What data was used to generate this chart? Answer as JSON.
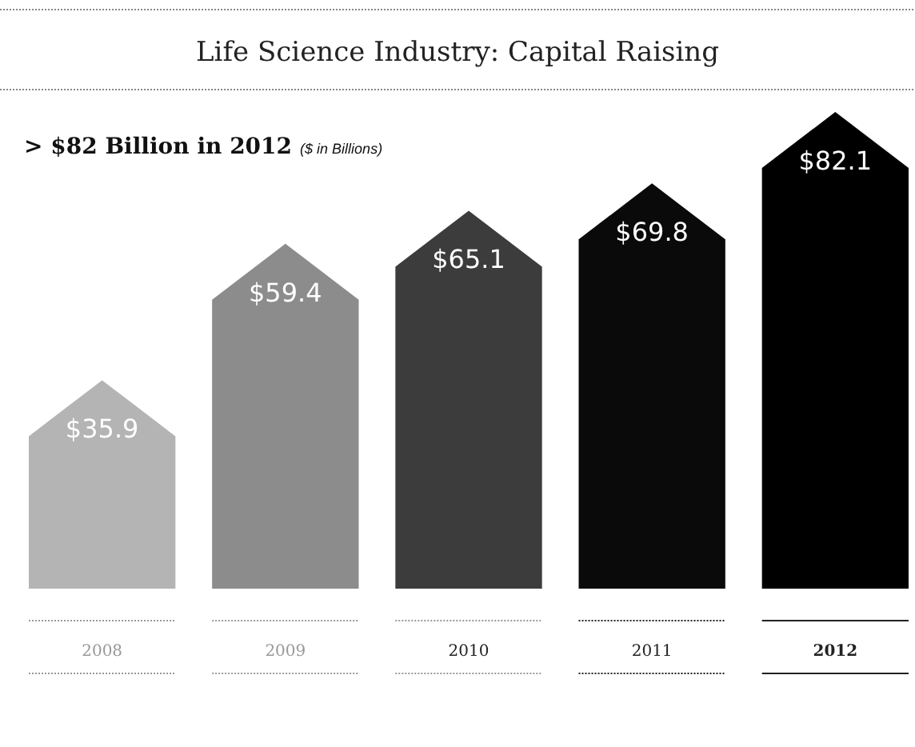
{
  "chart_data": {
    "type": "bar",
    "title": "Life Science Industry: Capital Raising",
    "subtitle": "> $82 Billion in 2012",
    "ylabel": "($ in Billions)",
    "categories": [
      "2008",
      "2009",
      "2010",
      "2011",
      "2012"
    ],
    "values": [
      35.9,
      59.4,
      65.1,
      69.8,
      82.1
    ],
    "colors": [
      "#b4b4b4",
      "#8c8c8c",
      "#3c3c3c",
      "#0a0a0a",
      "#000000"
    ],
    "value_labels": [
      "$35.9",
      "$59.4",
      "$65.1",
      "$69.8",
      "$82.1"
    ],
    "relative": false
  }
}
